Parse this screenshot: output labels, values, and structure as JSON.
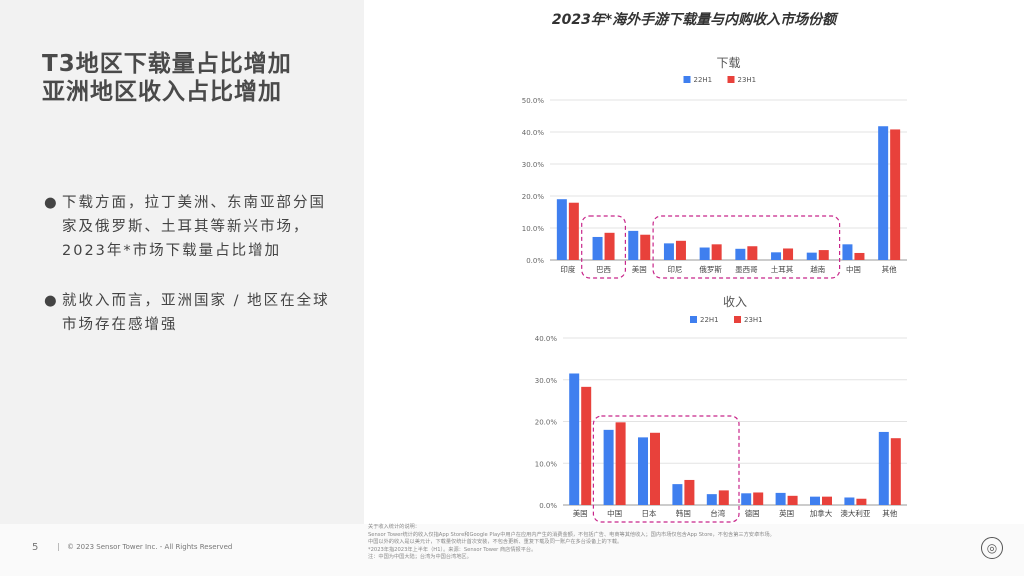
{
  "slide": {
    "title_line1": "T3地区下载量占比增加",
    "title_line2": "亚洲地区收入占比增加",
    "main_title": "2023年*海外手游下载量与内购收入市场份额",
    "bullets": [
      "下载方面，拉丁美洲、东南亚部分国家及俄罗斯、土耳其等新兴市场，2023年*市场下载量占比增加",
      "就收入而言，亚洲国家 / 地区在全球市场存在感增强"
    ],
    "page_number": "5",
    "copyright": "© 2023 Sensor Tower Inc. - All Rights Reserved",
    "notes": [
      "关于收入统计的说明：",
      "Sensor Tower统计的收入仅指App Store和Google Play中用户在应用内产生的消费金额，不包括广告、电商等其他收入；国内市场仅包含App Store，不包含第三方安卓市场。",
      "中国以外的收入是以美元计，下载量仅统计首次安装，不包含更新、重复下载及同一账户在多台设备上的下载。",
      "*2023年指2023年上半年（H1）。来源：Sensor Tower 商店情报平台。",
      "注：中国为中国大陆；台湾为中国台湾地区。"
    ],
    "colors": {
      "h22": "#3f7fef",
      "h23": "#e8413b",
      "highlight": "#c8268a"
    }
  },
  "chart_data": [
    {
      "type": "bar",
      "title": "下载",
      "categories": [
        "印度",
        "巴西",
        "美国",
        "印尼",
        "俄罗斯",
        "墨西哥",
        "土耳其",
        "越南",
        "中国",
        "其他"
      ],
      "series": [
        {
          "name": "22H1",
          "values": [
            19.0,
            7.2,
            9.1,
            5.2,
            3.9,
            3.5,
            2.4,
            2.3,
            4.9,
            41.8
          ]
        },
        {
          "name": "23H1",
          "values": [
            17.9,
            8.5,
            7.9,
            6.0,
            4.9,
            4.3,
            3.6,
            3.1,
            2.2,
            40.8
          ]
        }
      ],
      "ylim": [
        0,
        50
      ],
      "yticks": [
        "0.0%",
        "10.0%",
        "20.0%",
        "30.0%",
        "40.0%",
        "50.0%"
      ],
      "highlight_groups": [
        [
          1,
          1
        ],
        [
          3,
          7
        ]
      ]
    },
    {
      "type": "bar",
      "title": "收入",
      "categories": [
        "美国",
        "中国",
        "日本",
        "韩国",
        "台湾",
        "德国",
        "英国",
        "加拿大",
        "澳大利亚",
        "其他"
      ],
      "series": [
        {
          "name": "22H1",
          "values": [
            31.5,
            18.0,
            16.2,
            5.0,
            2.6,
            2.8,
            2.9,
            2.0,
            1.8,
            17.5
          ]
        },
        {
          "name": "23H1",
          "values": [
            28.3,
            19.8,
            17.3,
            6.0,
            3.5,
            3.0,
            2.2,
            2.0,
            1.5,
            16.0
          ]
        }
      ],
      "ylim": [
        0,
        40
      ],
      "yticks": [
        "0.0%",
        "10.0%",
        "20.0%",
        "30.0%",
        "40.0%"
      ],
      "highlight_groups": [
        [
          1,
          4
        ]
      ]
    }
  ]
}
